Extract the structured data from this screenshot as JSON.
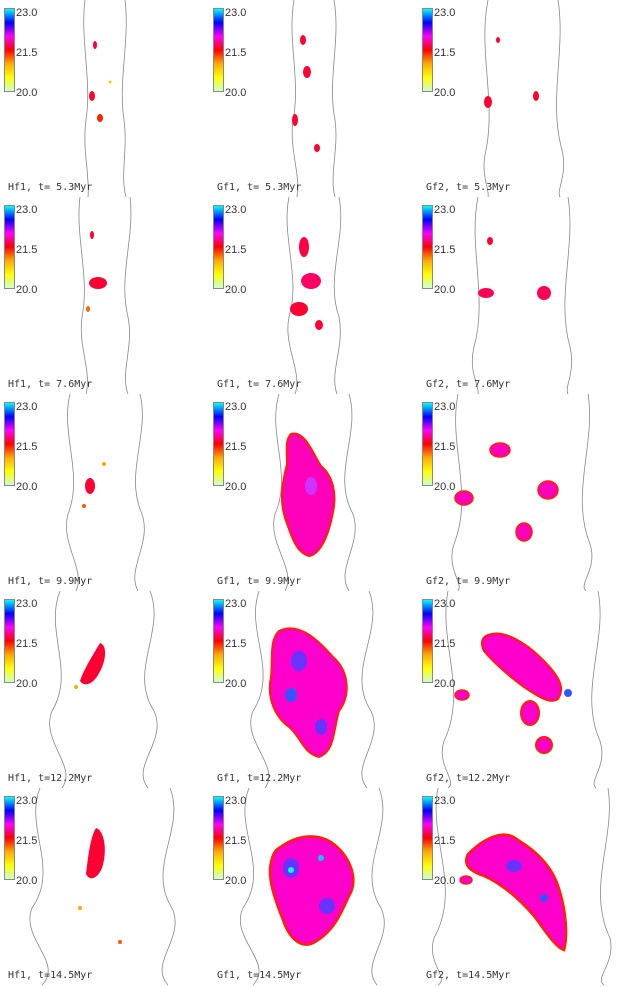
{
  "colorbar": {
    "ticks": [
      "23.0",
      "21.5",
      "20.0"
    ],
    "gradient": [
      "#00ffff",
      "#0000ff",
      "#ff00ff",
      "#ff0000",
      "#ffaa00",
      "#ffff00",
      "#ccffcc"
    ]
  },
  "columns": [
    "Hf1",
    "Gf1",
    "Gf2"
  ],
  "times": [
    "5.3Myr",
    "7.6Myr",
    "9.9Myr",
    "12.2Myr",
    "14.5Myr"
  ],
  "panels": [
    {
      "id": "hf1-5",
      "caption": "Hf1, t= 5.3Myr"
    },
    {
      "id": "gf1-5",
      "caption": "Gf1, t= 5.3Myr"
    },
    {
      "id": "gf2-5",
      "caption": "Gf2, t= 5.3Myr"
    },
    {
      "id": "hf1-7",
      "caption": "Hf1, t= 7.6Myr"
    },
    {
      "id": "gf1-7",
      "caption": "Gf1, t= 7.6Myr"
    },
    {
      "id": "gf2-7",
      "caption": "Gf2, t= 7.6Myr"
    },
    {
      "id": "hf1-9",
      "caption": "Hf1, t= 9.9Myr"
    },
    {
      "id": "gf1-9",
      "caption": "Gf1, t= 9.9Myr"
    },
    {
      "id": "gf2-9",
      "caption": "Gf2, t= 9.9Myr"
    },
    {
      "id": "hf1-12",
      "caption": "Hf1, t=12.2Myr"
    },
    {
      "id": "gf1-12",
      "caption": "Gf1, t=12.2Myr"
    },
    {
      "id": "gf2-12",
      "caption": "Gf2, t=12.2Myr"
    },
    {
      "id": "hf1-14",
      "caption": "Hf1, t=14.5Myr"
    },
    {
      "id": "gf1-14",
      "caption": "Gf1, t=14.5Myr"
    },
    {
      "id": "gf2-14",
      "caption": "Gf2, t=14.5Myr"
    }
  ]
}
